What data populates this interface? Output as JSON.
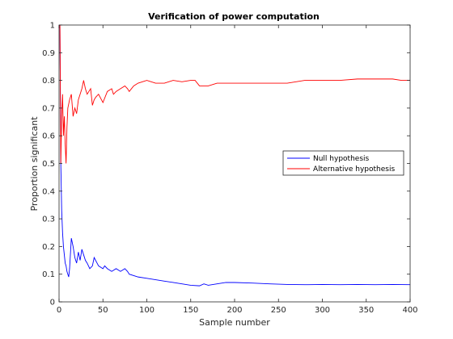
{
  "chart_data": {
    "type": "line",
    "title": "Verification of power computation",
    "xlabel": "Sample number",
    "ylabel": "Proportion significant",
    "xlim": [
      0,
      400
    ],
    "ylim": [
      0,
      1
    ],
    "xticks": [
      0,
      50,
      100,
      150,
      200,
      250,
      300,
      350,
      400
    ],
    "yticks": [
      0,
      0.1,
      0.2,
      0.3,
      0.4,
      0.5,
      0.6,
      0.7,
      0.8,
      0.9,
      1
    ],
    "grid": false,
    "legend_position": "right",
    "series": [
      {
        "name": "Null hypothesis",
        "color": "#0000ff",
        "x": [
          1,
          2,
          3,
          4,
          5,
          6,
          7,
          8,
          9,
          10,
          11,
          12,
          14,
          16,
          18,
          20,
          22,
          24,
          26,
          28,
          30,
          32,
          35,
          38,
          40,
          45,
          50,
          52,
          55,
          60,
          65,
          70,
          75,
          78,
          80,
          90,
          100,
          110,
          120,
          130,
          140,
          150,
          160,
          165,
          170,
          180,
          190,
          200,
          220,
          240,
          260,
          280,
          300,
          320,
          340,
          360,
          380,
          400
        ],
        "y": [
          1.0,
          0.5,
          0.33,
          0.25,
          0.2,
          0.17,
          0.14,
          0.13,
          0.11,
          0.1,
          0.09,
          0.12,
          0.23,
          0.2,
          0.16,
          0.14,
          0.18,
          0.15,
          0.19,
          0.17,
          0.15,
          0.14,
          0.12,
          0.13,
          0.16,
          0.13,
          0.12,
          0.13,
          0.12,
          0.11,
          0.12,
          0.11,
          0.12,
          0.11,
          0.1,
          0.09,
          0.085,
          0.08,
          0.075,
          0.07,
          0.065,
          0.06,
          0.058,
          0.065,
          0.06,
          0.065,
          0.07,
          0.07,
          0.068,
          0.065,
          0.063,
          0.062,
          0.063,
          0.062,
          0.063,
          0.062,
          0.063,
          0.062
        ]
      },
      {
        "name": "Alternative hypothesis",
        "color": "#ff0000",
        "x": [
          1,
          2,
          3,
          4,
          5,
          6,
          7,
          8,
          9,
          10,
          12,
          14,
          16,
          18,
          20,
          22,
          24,
          26,
          28,
          30,
          32,
          34,
          36,
          38,
          40,
          42,
          45,
          50,
          55,
          60,
          62,
          65,
          70,
          75,
          78,
          80,
          85,
          90,
          100,
          110,
          120,
          130,
          140,
          150,
          155,
          160,
          170,
          180,
          200,
          220,
          240,
          260,
          280,
          300,
          320,
          340,
          360,
          380,
          390,
          400
        ],
        "y": [
          1.0,
          0.5,
          0.67,
          0.75,
          0.6,
          0.67,
          0.57,
          0.5,
          0.63,
          0.7,
          0.73,
          0.75,
          0.67,
          0.7,
          0.68,
          0.73,
          0.75,
          0.77,
          0.8,
          0.77,
          0.75,
          0.76,
          0.77,
          0.71,
          0.73,
          0.74,
          0.75,
          0.72,
          0.76,
          0.77,
          0.75,
          0.76,
          0.77,
          0.78,
          0.77,
          0.76,
          0.78,
          0.79,
          0.8,
          0.79,
          0.79,
          0.8,
          0.795,
          0.8,
          0.8,
          0.78,
          0.78,
          0.79,
          0.79,
          0.79,
          0.79,
          0.79,
          0.8,
          0.8,
          0.8,
          0.805,
          0.805,
          0.805,
          0.8,
          0.8
        ]
      }
    ]
  }
}
